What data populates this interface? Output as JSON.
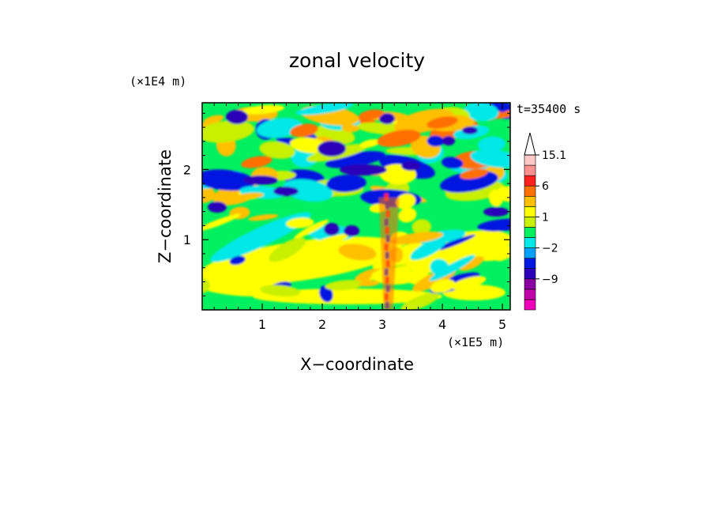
{
  "chart_data": {
    "type": "heatmap",
    "title": "zonal velocity",
    "xlabel": "X−coordinate",
    "ylabel": "Z−coordinate",
    "x_scale_label": "(×1E5 m)",
    "y_scale_label": "(×1E4 m)",
    "time_label": "t=35400 s",
    "xlim": [
      0,
      5.13
    ],
    "ylim": [
      0,
      2.95
    ],
    "x_ticks": [
      1,
      2,
      3,
      4,
      5
    ],
    "x_tick_labels": [
      "1",
      "2",
      "3",
      "4",
      "5"
    ],
    "y_ticks": [
      1,
      2
    ],
    "y_tick_labels": [
      "1",
      "2"
    ],
    "colorbar": {
      "levels_low_to_high": [
        -15,
        -12,
        -9,
        -6,
        -3,
        -2,
        -1,
        0,
        1,
        2,
        3,
        6,
        9,
        12,
        15.1
      ],
      "colors_low_to_high": [
        "#f000b8",
        "#c000a8",
        "#8a00a0",
        "#2c00b8",
        "#0018e0",
        "#00a0ff",
        "#00e8e8",
        "#00f060",
        "#c8f000",
        "#ffff00",
        "#ffc000",
        "#ff7000",
        "#ff2020",
        "#ff9090",
        "#ffc8c8"
      ],
      "labels": [
        {
          "value": 15.1,
          "text": "15.1"
        },
        {
          "value": 6,
          "text": "6"
        },
        {
          "value": 1,
          "text": "1"
        },
        {
          "value": -2,
          "text": "−2"
        },
        {
          "value": -9,
          "text": "−9"
        }
      ],
      "extend_max": true
    },
    "field_note": "2D contour field of zonal velocity over X (0–5.13 ×1E5 m) and Z (0–2.95 ×1E4 m); mostly green/yellow background (−1 to 3) with orange and blue bands aloft and a narrow alternating red/blue vertical structure near X≈3.1."
  }
}
